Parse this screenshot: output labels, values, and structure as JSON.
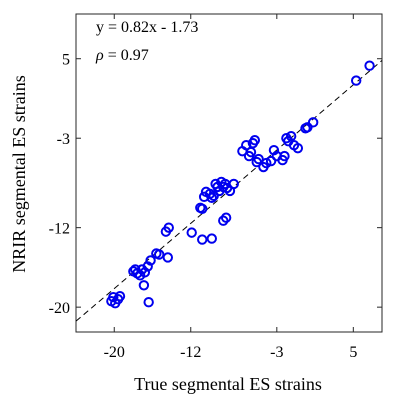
{
  "chart_data": {
    "type": "scatter",
    "xlabel": "True segmental ES  strains",
    "ylabel": "NRIR segmental ES  strains",
    "xlim": [
      -24,
      8
    ],
    "ylim": [
      -22.5,
      9.5
    ],
    "xticks": [
      "-20",
      "-12",
      "-3",
      "5"
    ],
    "xtick_values": [
      -20,
      -12,
      -3,
      5
    ],
    "yticks": [
      "5",
      "-3",
      "-12",
      "-20"
    ],
    "ytick_values": [
      5,
      -3,
      -12,
      -20
    ],
    "annotations": {
      "equation": "y = 0.82x - 1.73",
      "rho_symbol": "ρ",
      "rho_value": " = 0.97"
    },
    "fit_line": {
      "slope": 0.82,
      "intercept": -1.73,
      "style": "dashed",
      "color": "#000000"
    },
    "series": [
      {
        "marker": "circle-open",
        "color": "#0000ee",
        "points": [
          [
            -20.3,
            -19.4
          ],
          [
            -20.1,
            -19.0
          ],
          [
            -19.9,
            -19.6
          ],
          [
            -19.6,
            -19.2
          ],
          [
            -19.4,
            -18.9
          ],
          [
            -18.0,
            -16.4
          ],
          [
            -17.8,
            -16.2
          ],
          [
            -17.6,
            -16.6
          ],
          [
            -17.3,
            -16.8
          ],
          [
            -17.1,
            -16.2
          ],
          [
            -16.8,
            -16.5
          ],
          [
            -16.5,
            -15.9
          ],
          [
            -16.9,
            -17.8
          ],
          [
            -16.2,
            -15.3
          ],
          [
            -16.4,
            -19.5
          ],
          [
            -15.6,
            -14.6
          ],
          [
            -15.3,
            -14.7
          ],
          [
            -14.6,
            -12.4
          ],
          [
            -14.3,
            -12.0
          ],
          [
            -14.4,
            -15.0
          ],
          [
            -11.9,
            -12.5
          ],
          [
            -11.0,
            -10.0
          ],
          [
            -10.8,
            -10.1
          ],
          [
            -10.6,
            -8.9
          ],
          [
            -10.4,
            -8.4
          ],
          [
            -10.0,
            -8.6
          ],
          [
            -9.8,
            -9.0
          ],
          [
            -9.6,
            -8.8
          ],
          [
            -9.4,
            -7.6
          ],
          [
            -9.2,
            -7.9
          ],
          [
            -9.0,
            -8.3
          ],
          [
            -8.8,
            -7.4
          ],
          [
            -8.6,
            -7.9
          ],
          [
            -8.4,
            -7.6
          ],
          [
            -8.2,
            -8.0
          ],
          [
            -10.8,
            -13.2
          ],
          [
            -9.8,
            -13.1
          ],
          [
            -8.6,
            -11.3
          ],
          [
            -8.3,
            -11.0
          ],
          [
            -7.9,
            -8.3
          ],
          [
            -7.5,
            -7.6
          ],
          [
            -6.6,
            -4.3
          ],
          [
            -6.2,
            -3.7
          ],
          [
            -5.9,
            -4.8
          ],
          [
            -5.7,
            -4.4
          ],
          [
            -5.5,
            -3.5
          ],
          [
            -5.3,
            -3.2
          ],
          [
            -5.1,
            -5.4
          ],
          [
            -4.9,
            -5.1
          ],
          [
            -4.4,
            -5.9
          ],
          [
            -4.1,
            -5.5
          ],
          [
            -3.6,
            -5.3
          ],
          [
            -3.3,
            -4.2
          ],
          [
            -3.0,
            -4.8
          ],
          [
            -2.4,
            -5.2
          ],
          [
            -2.2,
            -4.8
          ],
          [
            -2.0,
            -3.0
          ],
          [
            -1.8,
            -3.3
          ],
          [
            -1.5,
            -2.8
          ],
          [
            -1.2,
            -3.7
          ],
          [
            -0.8,
            -4.0
          ],
          [
            0.0,
            -2.0
          ],
          [
            0.2,
            -1.9
          ],
          [
            0.8,
            -1.4
          ],
          [
            5.3,
            2.8
          ],
          [
            6.7,
            4.3
          ]
        ]
      }
    ]
  }
}
